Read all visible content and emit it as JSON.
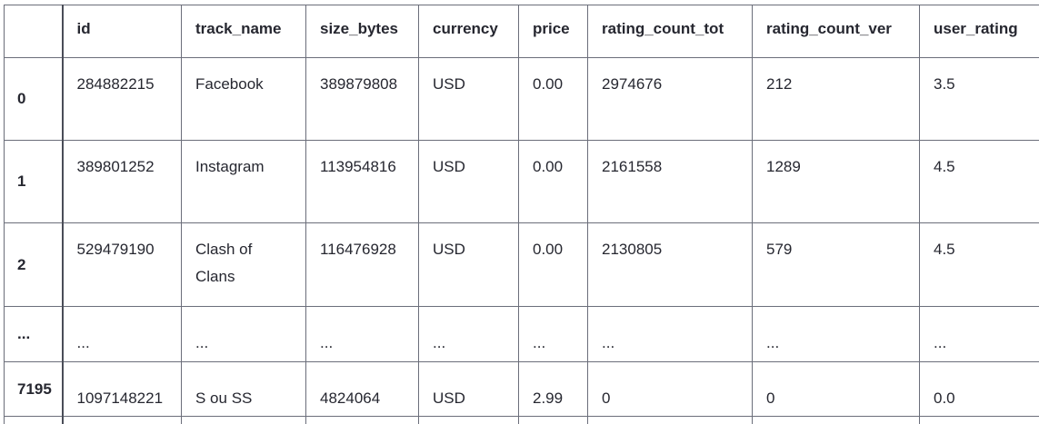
{
  "table": {
    "index_header": "",
    "columns": [
      "id",
      "track_name",
      "size_bytes",
      "currency",
      "price",
      "rating_count_tot",
      "rating_count_ver",
      "user_rating"
    ],
    "rows": [
      {
        "index": "0",
        "cells": [
          "284882215",
          "Facebook",
          "389879808",
          "USD",
          "0.00",
          "2974676",
          "212",
          "3.5"
        ]
      },
      {
        "index": "1",
        "cells": [
          "389801252",
          "Instagram",
          "113954816",
          "USD",
          "0.00",
          "2161558",
          "1289",
          "4.5"
        ]
      },
      {
        "index": "2",
        "cells": [
          "529479190",
          "Clash of Clans",
          "116476928",
          "USD",
          "0.00",
          "2130805",
          "579",
          "4.5"
        ]
      },
      {
        "index": "...",
        "cells": [
          "...",
          "...",
          "...",
          "...",
          "...",
          "...",
          "...",
          "..."
        ]
      },
      {
        "index": "7195",
        "cells": [
          "1097148221",
          "S ou SS",
          "4824064",
          "USD",
          "2.99",
          "0",
          "0",
          "0.0"
        ]
      }
    ]
  }
}
